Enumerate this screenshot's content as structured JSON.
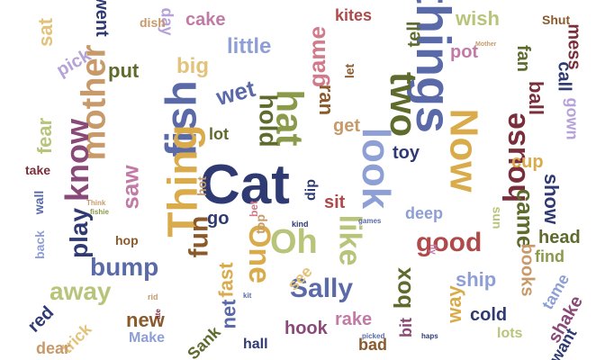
{
  "cloud": {
    "palette": {
      "navy": "#2f3a72",
      "slate": "#5a6aa8",
      "periwinkle": "#8e9fd6",
      "lavender": "#b6a2d8",
      "olive": "#5f6b2c",
      "green": "#8a9a4a",
      "lightgreen": "#b7c47a",
      "sand": "#e3c27a",
      "gold": "#d9ab4a",
      "brown": "#8b5a2b",
      "tan": "#c89a6a",
      "maroon": "#7a2e3a",
      "red": "#b04a4a",
      "pink": "#d07a8a",
      "plum": "#8a4a78",
      "orchid": "#c27aa6",
      "purple": "#6a4a8a"
    },
    "words": [
      {
        "text": "Cat",
        "color": "navy"
      },
      {
        "text": "things",
        "color": "slate"
      },
      {
        "text": "fish",
        "color": "slate"
      },
      {
        "text": "Thing",
        "color": "gold"
      },
      {
        "text": "look",
        "color": "periwinkle"
      },
      {
        "text": "two",
        "color": "olive"
      },
      {
        "text": "hat",
        "color": "green"
      },
      {
        "text": "Now",
        "color": "gold"
      },
      {
        "text": "mother",
        "color": "tan"
      },
      {
        "text": "know",
        "color": "plum"
      },
      {
        "text": "house",
        "color": "maroon"
      },
      {
        "text": "Oh",
        "color": "lightgreen"
      },
      {
        "text": "like",
        "color": "lightgreen"
      },
      {
        "text": "One",
        "color": "gold"
      },
      {
        "text": "bump",
        "color": "slate"
      },
      {
        "text": "good",
        "color": "red"
      },
      {
        "text": "away",
        "color": "lightgreen"
      },
      {
        "text": "play",
        "color": "navy"
      },
      {
        "text": "saw",
        "color": "orchid"
      },
      {
        "text": "fun",
        "color": "brown"
      },
      {
        "text": "Sally",
        "color": "slate"
      },
      {
        "text": "box",
        "color": "olive"
      },
      {
        "text": "came",
        "color": "olive"
      },
      {
        "text": "hold",
        "color": "olive"
      },
      {
        "text": "game",
        "color": "pink"
      },
      {
        "text": "little",
        "color": "periwinkle"
      },
      {
        "text": "fear",
        "color": "lightgreen"
      },
      {
        "text": "wet",
        "color": "slate"
      },
      {
        "text": "new",
        "color": "brown"
      },
      {
        "text": "fast",
        "color": "gold"
      },
      {
        "text": "net",
        "color": "slate"
      },
      {
        "text": "show",
        "color": "navy"
      },
      {
        "text": "ship",
        "color": "periwinkle"
      },
      {
        "text": "books",
        "color": "tan"
      },
      {
        "text": "way",
        "color": "gold"
      },
      {
        "text": "cold",
        "color": "navy"
      },
      {
        "text": "hook",
        "color": "plum"
      },
      {
        "text": "rake",
        "color": "orchid"
      },
      {
        "text": "cake",
        "color": "orchid"
      },
      {
        "text": "big",
        "color": "sand"
      },
      {
        "text": "put",
        "color": "olive"
      },
      {
        "text": "pick",
        "color": "lavender"
      },
      {
        "text": "went",
        "color": "navy"
      },
      {
        "text": "day",
        "color": "lavender"
      },
      {
        "text": "sat",
        "color": "sand"
      },
      {
        "text": "kites",
        "color": "red"
      },
      {
        "text": "tell",
        "color": "olive"
      },
      {
        "text": "wish",
        "color": "lightgreen"
      },
      {
        "text": "fan",
        "color": "olive"
      },
      {
        "text": "pot",
        "color": "orchid"
      },
      {
        "text": "mess",
        "color": "maroon"
      },
      {
        "text": "ball",
        "color": "maroon"
      },
      {
        "text": "call",
        "color": "navy"
      },
      {
        "text": "gown",
        "color": "lavender"
      },
      {
        "text": "cup",
        "color": "gold"
      },
      {
        "text": "toy",
        "color": "navy"
      },
      {
        "text": "ran",
        "color": "brown"
      },
      {
        "text": "get",
        "color": "tan"
      },
      {
        "text": "sit",
        "color": "red"
      },
      {
        "text": "go",
        "color": "navy"
      },
      {
        "text": "lot",
        "color": "olive"
      },
      {
        "text": "deep",
        "color": "periwinkle"
      },
      {
        "text": "head",
        "color": "olive"
      },
      {
        "text": "find",
        "color": "green"
      },
      {
        "text": "tame",
        "color": "periwinkle"
      },
      {
        "text": "shake",
        "color": "plum"
      },
      {
        "text": "want",
        "color": "navy"
      },
      {
        "text": "lots",
        "color": "lightgreen"
      },
      {
        "text": "bit",
        "color": "plum"
      },
      {
        "text": "red",
        "color": "navy"
      },
      {
        "text": "trick",
        "color": "sand"
      },
      {
        "text": "dear",
        "color": "tan"
      },
      {
        "text": "Make",
        "color": "periwinkle"
      },
      {
        "text": "Sank",
        "color": "olive"
      },
      {
        "text": "hall",
        "color": "navy"
      },
      {
        "text": "bad",
        "color": "brown"
      },
      {
        "text": "see",
        "color": "sand"
      },
      {
        "text": "hop",
        "color": "brown"
      },
      {
        "text": "back",
        "color": "periwinkle"
      },
      {
        "text": "wall",
        "color": "slate"
      },
      {
        "text": "take",
        "color": "maroon"
      },
      {
        "text": "top",
        "color": "tan"
      },
      {
        "text": "let",
        "color": "brown"
      },
      {
        "text": "dish",
        "color": "tan"
      },
      {
        "text": "Shut",
        "color": "brown"
      },
      {
        "text": "dip",
        "color": "navy"
      },
      {
        "text": "sun",
        "color": "lightgreen"
      },
      {
        "text": "hot",
        "color": "tan"
      },
      {
        "text": "bet",
        "color": "pink"
      },
      {
        "text": "kind",
        "color": "navy"
      },
      {
        "text": "games",
        "color": "slate"
      },
      {
        "text": "picked",
        "color": "slate"
      },
      {
        "text": "haps",
        "color": "navy"
      },
      {
        "text": "fishie",
        "color": "green"
      },
      {
        "text": "Think",
        "color": "tan"
      },
      {
        "text": "Mother",
        "color": "tan"
      },
      {
        "text": "fly",
        "color": "orchid"
      },
      {
        "text": "rid",
        "color": "tan"
      },
      {
        "text": "ate",
        "color": "maroon"
      },
      {
        "text": "kit",
        "color": "slate"
      }
    ]
  }
}
